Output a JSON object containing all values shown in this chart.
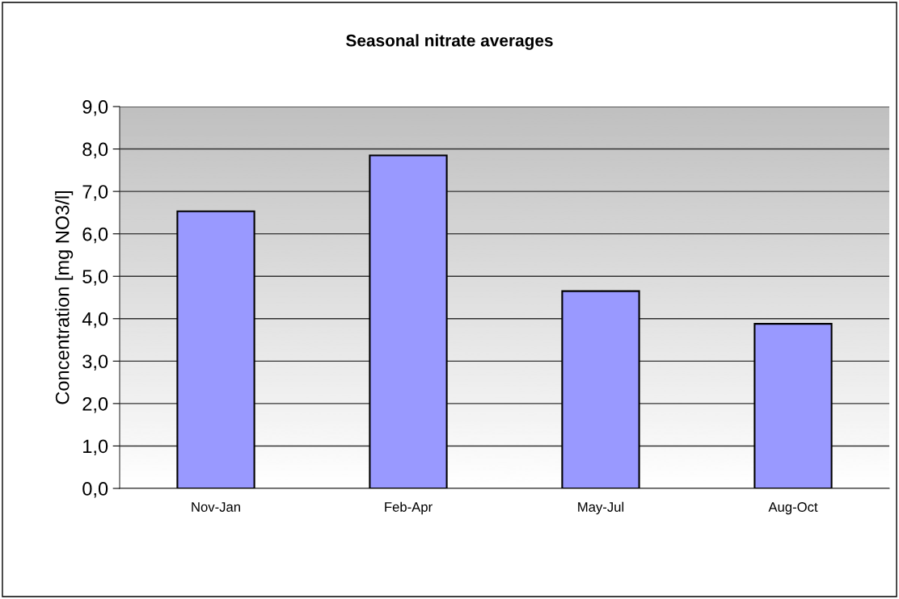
{
  "chart_data": {
    "type": "bar",
    "title": "Seasonal nitrate averages",
    "ylabel": "Concentration [mg NO3/l]",
    "categories": [
      "Nov-Jan",
      "Feb-Apr",
      "May-Jul",
      "Aug-Oct"
    ],
    "values": [
      6.53,
      7.85,
      4.65,
      3.88
    ],
    "color": "#9999ff",
    "ylim": [
      0,
      9
    ],
    "yticks": [
      {
        "value": 0,
        "label": "0,0"
      },
      {
        "value": 1,
        "label": "1,0"
      },
      {
        "value": 2,
        "label": "2,0"
      },
      {
        "value": 3,
        "label": "3,0"
      },
      {
        "value": 4,
        "label": "4,0"
      },
      {
        "value": 5,
        "label": "5,0"
      },
      {
        "value": 6,
        "label": "6,0"
      },
      {
        "value": 7,
        "label": "7,0"
      },
      {
        "value": 8,
        "label": "8,0"
      },
      {
        "value": 9,
        "label": "9,0"
      }
    ],
    "grid": "y",
    "legend": false
  }
}
